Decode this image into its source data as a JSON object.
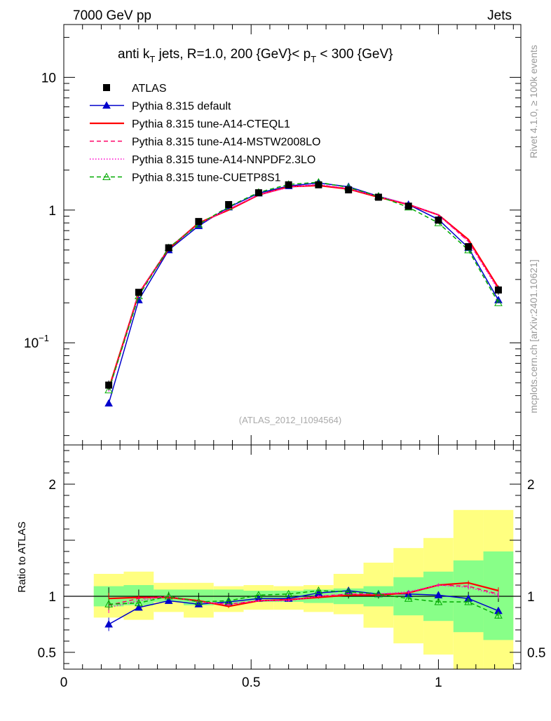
{
  "header": {
    "left": "7000 GeV pp",
    "right": "Jets"
  },
  "side_labels": {
    "rivet": "Rivet 4.1.0, ≥ 100k events",
    "mcplots": "mcplots.cern.ch [arXiv:2401.10621]"
  },
  "chart_data": [
    {
      "type": "line",
      "title_parts": {
        "a": "anti k",
        "b": "T",
        "c": " jets, R=1.0,  200 {GeV}< p",
        "d": "T",
        "e": " < 300 {GeV}"
      },
      "watermark": "(ATLAS_2012_I1094564)",
      "yscale": "log",
      "xlim": [
        0,
        1.22
      ],
      "ylim": [
        0.017,
        25
      ],
      "yticks": [
        {
          "v": 0.1,
          "base": "10",
          "exp": "−1"
        },
        {
          "v": 1,
          "base": "1",
          "exp": ""
        },
        {
          "v": 10,
          "base": "10",
          "exp": ""
        }
      ],
      "x": [
        0.12,
        0.2,
        0.28,
        0.36,
        0.44,
        0.52,
        0.6,
        0.68,
        0.76,
        0.84,
        0.92,
        1.0,
        1.08,
        1.16
      ],
      "data": {
        "name": "ATLAS",
        "values": [
          0.048,
          0.24,
          0.52,
          0.82,
          1.1,
          1.35,
          1.55,
          1.55,
          1.42,
          1.25,
          1.07,
          0.84,
          0.53,
          0.25
        ],
        "err": [
          0.004,
          0.01,
          0.02,
          0.02,
          0.03,
          0.03,
          0.03,
          0.03,
          0.03,
          0.03,
          0.03,
          0.03,
          0.03,
          0.02
        ]
      },
      "series": [
        {
          "name": "Pythia 8.315 default",
          "color": "#0000cc",
          "dash": "",
          "marker": "triangle-filled",
          "values": [
            0.035,
            0.21,
            0.5,
            0.76,
            1.05,
            1.34,
            1.52,
            1.6,
            1.5,
            1.27,
            1.1,
            0.85,
            0.52,
            0.21
          ]
        },
        {
          "name": "Pythia 8.315 tune-A14-CTEQL1",
          "color": "#ff0000",
          "dash": "",
          "marker": "",
          "values": [
            0.045,
            0.235,
            0.51,
            0.8,
            1.0,
            1.3,
            1.5,
            1.53,
            1.44,
            1.25,
            1.1,
            0.92,
            0.6,
            0.26
          ]
        },
        {
          "name": "Pythia 8.315 tune-A14-MSTW2008LO",
          "color": "#ff0066",
          "dash": "6,4",
          "marker": "",
          "values": [
            0.044,
            0.235,
            0.52,
            0.79,
            1.01,
            1.3,
            1.5,
            1.55,
            1.45,
            1.26,
            1.1,
            0.92,
            0.58,
            0.255
          ]
        },
        {
          "name": "Pythia 8.315 tune-A14-NNPDF2.3LO",
          "color": "#ff00cc",
          "dash": "1.5,2.5",
          "marker": "",
          "values": [
            0.043,
            0.23,
            0.52,
            0.78,
            1.02,
            1.3,
            1.48,
            1.56,
            1.45,
            1.27,
            1.11,
            0.92,
            0.58,
            0.25
          ]
        },
        {
          "name": "Pythia 8.315 tune-CUETP8S1",
          "color": "#00aa00",
          "dash": "6,4",
          "marker": "triangle-open",
          "values": [
            0.044,
            0.225,
            0.52,
            0.78,
            1.06,
            1.36,
            1.56,
            1.62,
            1.48,
            1.27,
            1.05,
            0.8,
            0.5,
            0.2
          ]
        }
      ]
    },
    {
      "type": "line",
      "ylabel": "Ratio to ATLAS",
      "xlim": [
        0,
        1.22
      ],
      "ylim": [
        0.35,
        2.35
      ],
      "xticks": [
        {
          "v": 0,
          "label": "0"
        },
        {
          "v": 0.5,
          "label": "0.5"
        },
        {
          "v": 1,
          "label": "1"
        }
      ],
      "yticks": [
        {
          "v": 0.5,
          "label": "0.5"
        },
        {
          "v": 1,
          "label": "1"
        },
        {
          "v": 2,
          "label": "2"
        }
      ],
      "bin_edges": [
        0.08,
        0.16,
        0.24,
        0.32,
        0.4,
        0.48,
        0.56,
        0.64,
        0.72,
        0.8,
        0.88,
        0.96,
        1.04,
        1.12,
        1.2
      ],
      "band_green": [
        [
          0.91,
          1.09
        ],
        [
          0.92,
          1.1
        ],
        [
          0.95,
          1.06
        ],
        [
          0.92,
          1.06
        ],
        [
          0.93,
          1.06
        ],
        [
          0.95,
          1.05
        ],
        [
          0.95,
          1.05
        ],
        [
          0.94,
          1.06
        ],
        [
          0.93,
          1.07
        ],
        [
          0.91,
          1.09
        ],
        [
          0.83,
          1.17
        ],
        [
          0.78,
          1.22
        ],
        [
          0.68,
          1.32
        ],
        [
          0.61,
          1.4
        ]
      ],
      "band_yellow": [
        [
          0.81,
          1.2
        ],
        [
          0.79,
          1.22
        ],
        [
          0.86,
          1.12
        ],
        [
          0.81,
          1.12
        ],
        [
          0.86,
          1.09
        ],
        [
          0.88,
          1.1
        ],
        [
          0.88,
          1.09
        ],
        [
          0.86,
          1.1
        ],
        [
          0.84,
          1.2
        ],
        [
          0.72,
          1.3
        ],
        [
          0.58,
          1.43
        ],
        [
          0.48,
          1.52
        ],
        [
          0.35,
          1.77
        ],
        [
          0.35,
          1.77
        ]
      ],
      "data_err": [
        0.08,
        0.06,
        0.04,
        0.03,
        0.03,
        0.02,
        0.02,
        0.02,
        0.02,
        0.02,
        0.03,
        0.04,
        0.04,
        0.05
      ],
      "series": [
        {
          "name": "Pythia 8.315 default",
          "color": "#0000cc",
          "dash": "",
          "marker": "triangle-filled",
          "values": [
            0.75,
            0.9,
            0.96,
            0.93,
            0.95,
            0.98,
            0.98,
            1.03,
            1.05,
            1.02,
            1.02,
            1.01,
            0.98,
            0.87
          ],
          "err": [
            0.06,
            0.02,
            0.015,
            0.015,
            0.015,
            0.01,
            0.01,
            0.01,
            0.01,
            0.01,
            0.015,
            0.015,
            0.02,
            0.03
          ]
        },
        {
          "name": "Pythia 8.315 tune-A14-CTEQL1",
          "color": "#ff0000",
          "dash": "",
          "marker": "",
          "values": [
            0.98,
            0.99,
            0.99,
            0.96,
            0.91,
            0.96,
            0.97,
            0.99,
            1.01,
            1.01,
            1.03,
            1.1,
            1.12,
            1.05
          ],
          "err": [
            0.05,
            0.02,
            0.015,
            0.015,
            0.015,
            0.01,
            0.01,
            0.01,
            0.01,
            0.01,
            0.015,
            0.015,
            0.02,
            0.03
          ]
        },
        {
          "name": "Pythia 8.315 tune-A14-MSTW2008LO",
          "color": "#ff0066",
          "dash": "6,4",
          "marker": "",
          "values": [
            0.92,
            0.98,
            1.0,
            0.95,
            0.93,
            0.96,
            0.97,
            1.0,
            1.02,
            1.02,
            1.03,
            1.1,
            1.09,
            1.02
          ],
          "err": [
            0.05,
            0.02,
            0.015,
            0.015,
            0.015,
            0.01,
            0.01,
            0.01,
            0.01,
            0.01,
            0.015,
            0.015,
            0.02,
            0.03
          ]
        },
        {
          "name": "Pythia 8.315 tune-A14-NNPDF2.3LO",
          "color": "#ff00cc",
          "dash": "1.5,2.5",
          "marker": "",
          "values": [
            0.9,
            0.96,
            1.0,
            0.95,
            0.93,
            0.96,
            0.96,
            1.0,
            1.02,
            1.02,
            1.04,
            1.1,
            1.08,
            1.01
          ],
          "err": [
            0.05,
            0.02,
            0.015,
            0.015,
            0.015,
            0.01,
            0.01,
            0.01,
            0.01,
            0.01,
            0.015,
            0.015,
            0.02,
            0.03
          ]
        },
        {
          "name": "Pythia 8.315 tune-CUETP8S1",
          "color": "#00aa00",
          "dash": "6,4",
          "marker": "triangle-open",
          "values": [
            0.93,
            0.94,
            1.0,
            0.95,
            0.96,
            1.01,
            1.02,
            1.05,
            1.04,
            1.02,
            0.98,
            0.95,
            0.95,
            0.83
          ],
          "err": [
            0.05,
            0.02,
            0.015,
            0.015,
            0.015,
            0.01,
            0.01,
            0.01,
            0.01,
            0.01,
            0.015,
            0.015,
            0.02,
            0.03
          ]
        }
      ]
    }
  ]
}
